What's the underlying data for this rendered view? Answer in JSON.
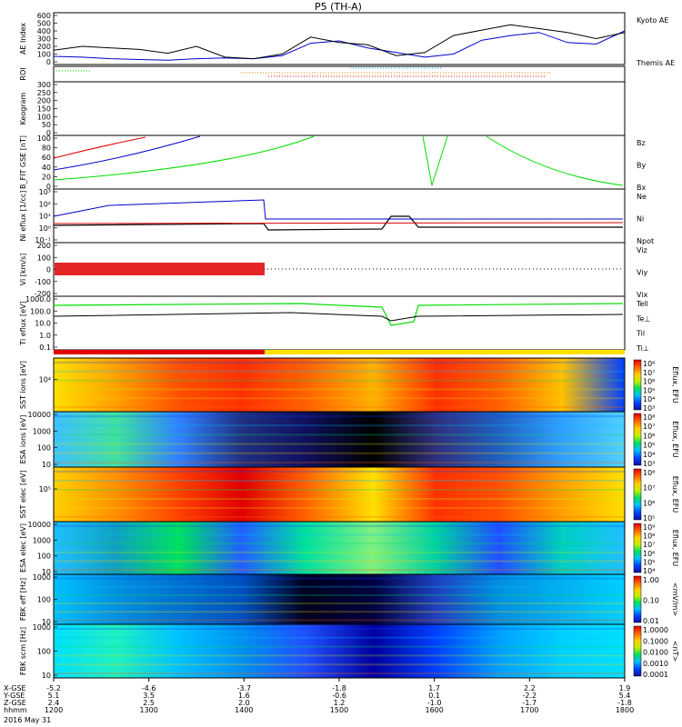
{
  "title": "P5 (TH-A)",
  "colors": {
    "red": "#e00000",
    "green": "#00dd00",
    "blue": "#0000cc",
    "black": "#000000"
  },
  "chart_data": {
    "type": "line",
    "title": "P5 (TH-A)",
    "x_ticks": [
      "1200",
      "1300",
      "1400",
      "1500",
      "1600",
      "1700",
      "1800"
    ],
    "x_label_rows": [
      {
        "label": "X-GSE",
        "values": [
          "-5.2",
          "-4.6",
          "-3.7",
          "-1.8",
          "1.7",
          "2.2",
          "1.9"
        ]
      },
      {
        "label": "Y-GSE",
        "values": [
          "5.1",
          "3.5",
          "1.6",
          "-0.6",
          "0.1",
          "-2.2",
          "5.4"
        ]
      },
      {
        "label": "Z-GSE",
        "values": [
          "2.4",
          "2.5",
          "2.0",
          "1.2",
          "-1.0",
          "-1.7",
          "-1.8"
        ]
      },
      {
        "label": "hhmm",
        "values": [
          "1200",
          "1300",
          "1400",
          "1500",
          "1600",
          "1700",
          "1800"
        ]
      }
    ],
    "date": "2016 May 31",
    "panels": [
      {
        "id": "ae",
        "ylabel": "AE Index",
        "yticks": [
          "600",
          "500",
          "400",
          "300",
          "200",
          "100",
          "0"
        ],
        "legend": [
          {
            "name": "Kyoto AE",
            "color": "#0000cc"
          },
          {
            "name": "Themis AE",
            "color": "#000000"
          }
        ],
        "series": [
          {
            "name": "Kyoto AE",
            "color": "#0000cc",
            "x": [
              0,
              0.05,
              0.1,
              0.15,
              0.2,
              0.25,
              0.3,
              0.35,
              0.4,
              0.45,
              0.5,
              0.55,
              0.6,
              0.65,
              0.7,
              0.75,
              0.8,
              0.85,
              0.9,
              0.95,
              1
            ],
            "y": [
              70,
              60,
              40,
              30,
              20,
              40,
              50,
              40,
              80,
              240,
              270,
              180,
              120,
              60,
              100,
              280,
              340,
              380,
              250,
              230,
              400
            ]
          },
          {
            "name": "Themis AE",
            "color": "#000000",
            "x": [
              0,
              0.05,
              0.1,
              0.15,
              0.2,
              0.25,
              0.3,
              0.35,
              0.4,
              0.45,
              0.5,
              0.55,
              0.6,
              0.65,
              0.7,
              0.75,
              0.8,
              0.85,
              0.9,
              0.95,
              1
            ],
            "y": [
              150,
              200,
              180,
              160,
              110,
              200,
              60,
              40,
              100,
              320,
              250,
              220,
              80,
              120,
              340,
              410,
              480,
              430,
              380,
              300,
              380
            ]
          }
        ]
      },
      {
        "id": "roi",
        "ylabel": "ROI"
      },
      {
        "id": "keogram",
        "ylabel": "Keogram",
        "yticks": [
          "300",
          "250",
          "200",
          "150",
          "100",
          "50",
          "0"
        ]
      },
      {
        "id": "bfit",
        "ylabel": "B_FIT GSE [nT]",
        "yticks": [
          "100",
          "80",
          "60",
          "40",
          "20",
          "0"
        ],
        "legend": [
          {
            "name": "Bz",
            "color": "#e00000"
          },
          {
            "name": "By",
            "color": "#00dd00"
          },
          {
            "name": "Bx",
            "color": "#0000cc"
          }
        ]
      },
      {
        "id": "ni",
        "ylabel": "Ni eflux [1/cc]",
        "yticks": [
          "10³",
          "10²",
          "10¹",
          "10⁰",
          "10⁻¹"
        ],
        "legend": [
          {
            "name": "Ne",
            "color": "#e00000"
          },
          {
            "name": "Ni",
            "color": "#000000"
          },
          {
            "name": "Npot",
            "color": "#0000cc"
          }
        ]
      },
      {
        "id": "vi",
        "ylabel": "Vi [km/s]",
        "yticks": [
          "200",
          "100",
          "0",
          "-100",
          "-200"
        ],
        "legend": [
          {
            "name": "Viz",
            "color": "#e00000"
          },
          {
            "name": "Viy",
            "color": "#00dd00"
          },
          {
            "name": "Vix",
            "color": "#0000cc"
          }
        ]
      },
      {
        "id": "ti",
        "ylabel": "Ti eflux [eV]",
        "yticks": [
          "1000.0",
          "100.0",
          "10.0",
          "1.0",
          "0.1"
        ],
        "legend": [
          {
            "name": "Tell",
            "color": "#000000"
          },
          {
            "name": "Te⊥",
            "color": "#e00000"
          },
          {
            "name": "Til",
            "color": "#00dd00"
          },
          {
            "name": "Ti⊥",
            "color": "#0000cc"
          }
        ]
      },
      {
        "id": "sst_i",
        "ylabel": "SST ions [eV]",
        "yticks": [
          "10⁴"
        ],
        "colorbar": "Eflux, EFU",
        "cb_ticks": [
          "10⁸",
          "10⁷",
          "10⁶",
          "10⁵",
          "10⁴",
          "10³"
        ]
      },
      {
        "id": "esa_i",
        "ylabel": "ESA ions [eV]",
        "yticks": [
          "10000",
          "1000",
          "100",
          "10"
        ],
        "colorbar": "Eflux, EFU",
        "cb_ticks": [
          "10⁸",
          "10⁷",
          "10⁶",
          "10⁵",
          "10⁴",
          "10³"
        ]
      },
      {
        "id": "sst_e",
        "ylabel": "SST elec [eV]",
        "yticks": [
          "10⁵"
        ],
        "colorbar": "Eflux, EFU",
        "cb_ticks": [
          "10⁸",
          "10⁷",
          "10⁶",
          "10⁵"
        ]
      },
      {
        "id": "esa_e",
        "ylabel": "ESA elec [eV]",
        "yticks": [
          "10000",
          "1000",
          "100",
          "10"
        ],
        "colorbar": "Eflux, EFU",
        "cb_ticks": [
          "10⁹",
          "10⁸",
          "10⁷",
          "10⁶",
          "10⁵",
          "10⁴"
        ]
      },
      {
        "id": "fbk_e",
        "ylabel": "FBK eff [Hz]",
        "yticks": [
          "1000",
          "100",
          "10"
        ],
        "colorbar": "<mV/m>",
        "cb_ticks": [
          "1.00",
          "0.10",
          "0.01"
        ]
      },
      {
        "id": "fbk_b",
        "ylabel": "FBK scm [Hz]",
        "yticks": [
          "1000",
          "100",
          "10"
        ],
        "colorbar": "<nT>",
        "cb_ticks": [
          "1.0000",
          "0.1000",
          "0.0100",
          "0.0010",
          "0.0001"
        ]
      }
    ]
  }
}
